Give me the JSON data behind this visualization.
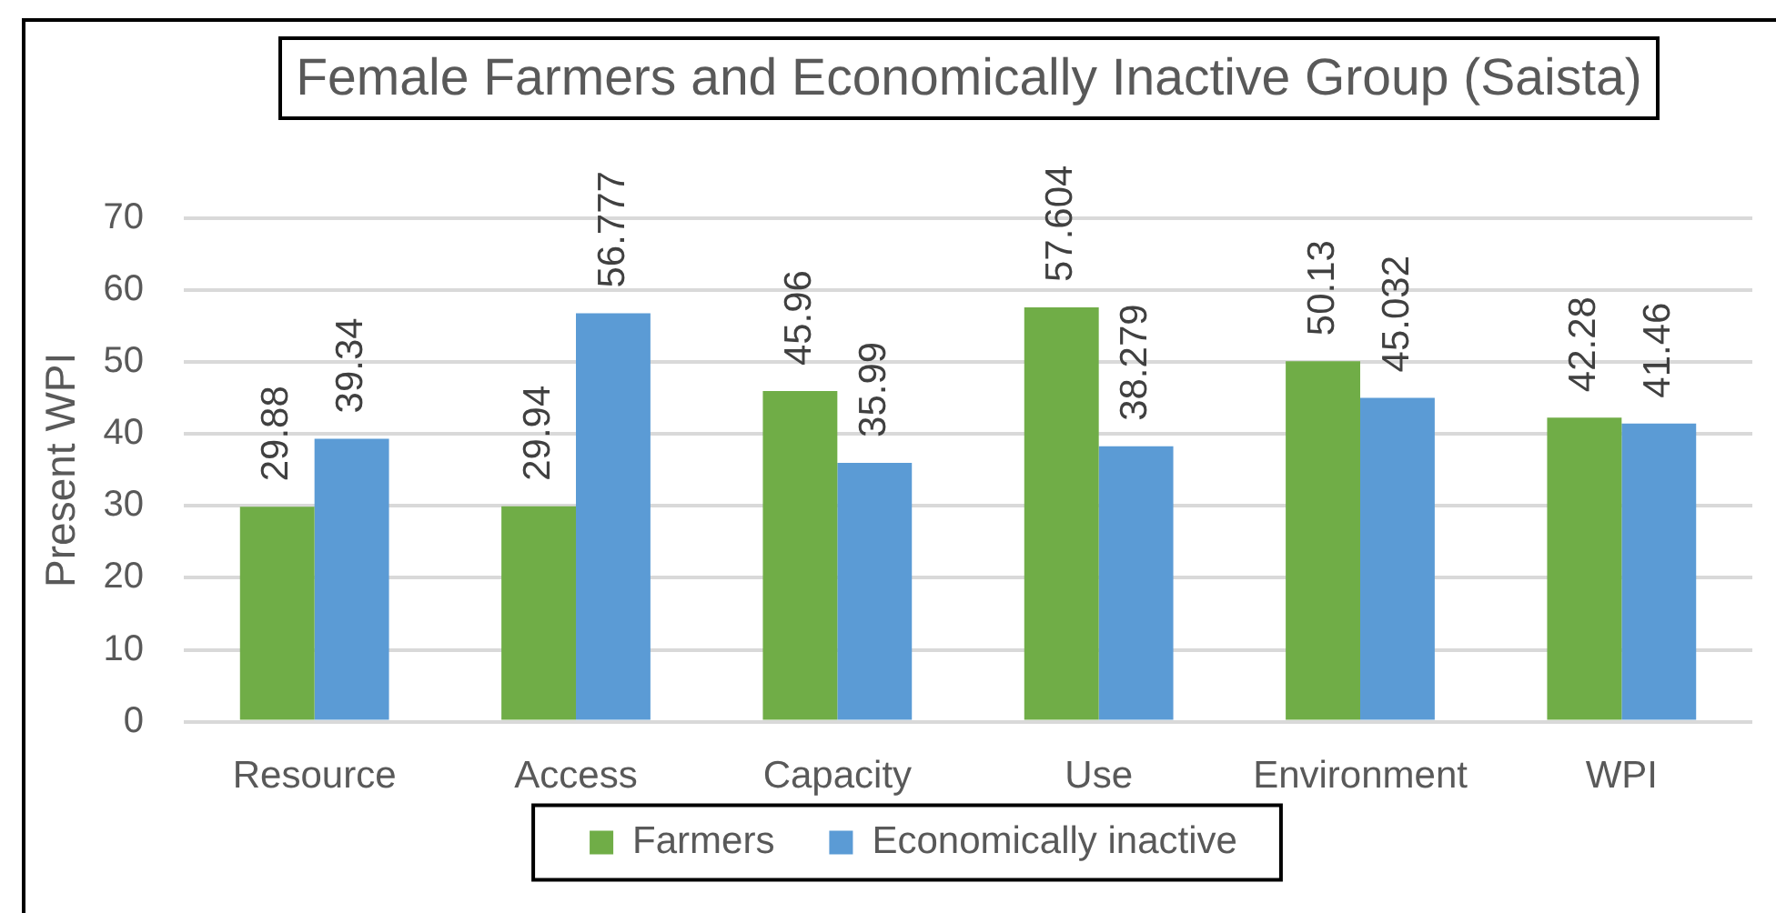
{
  "chart_data": {
    "type": "bar",
    "title": "Female Farmers and Economically Inactive Group (Saista)",
    "ylabel": "Present WPI",
    "categories": [
      "Resource",
      "Access",
      "Capacity",
      "Use",
      "Environment",
      "WPI"
    ],
    "series": [
      {
        "name": "Farmers",
        "color": "#70ad47",
        "values": [
          29.88,
          29.94,
          45.96,
          57.604,
          50.13,
          42.28
        ]
      },
      {
        "name": "Economically inactive",
        "color": "#5b9bd5",
        "values": [
          39.34,
          56.777,
          35.99,
          38.279,
          45.032,
          41.46
        ]
      }
    ],
    "ylim": [
      0,
      70
    ],
    "yticks": [
      0,
      10,
      20,
      30,
      40,
      50,
      60,
      70
    ],
    "grid": "y",
    "legend": "bottom",
    "data_labels": true
  }
}
